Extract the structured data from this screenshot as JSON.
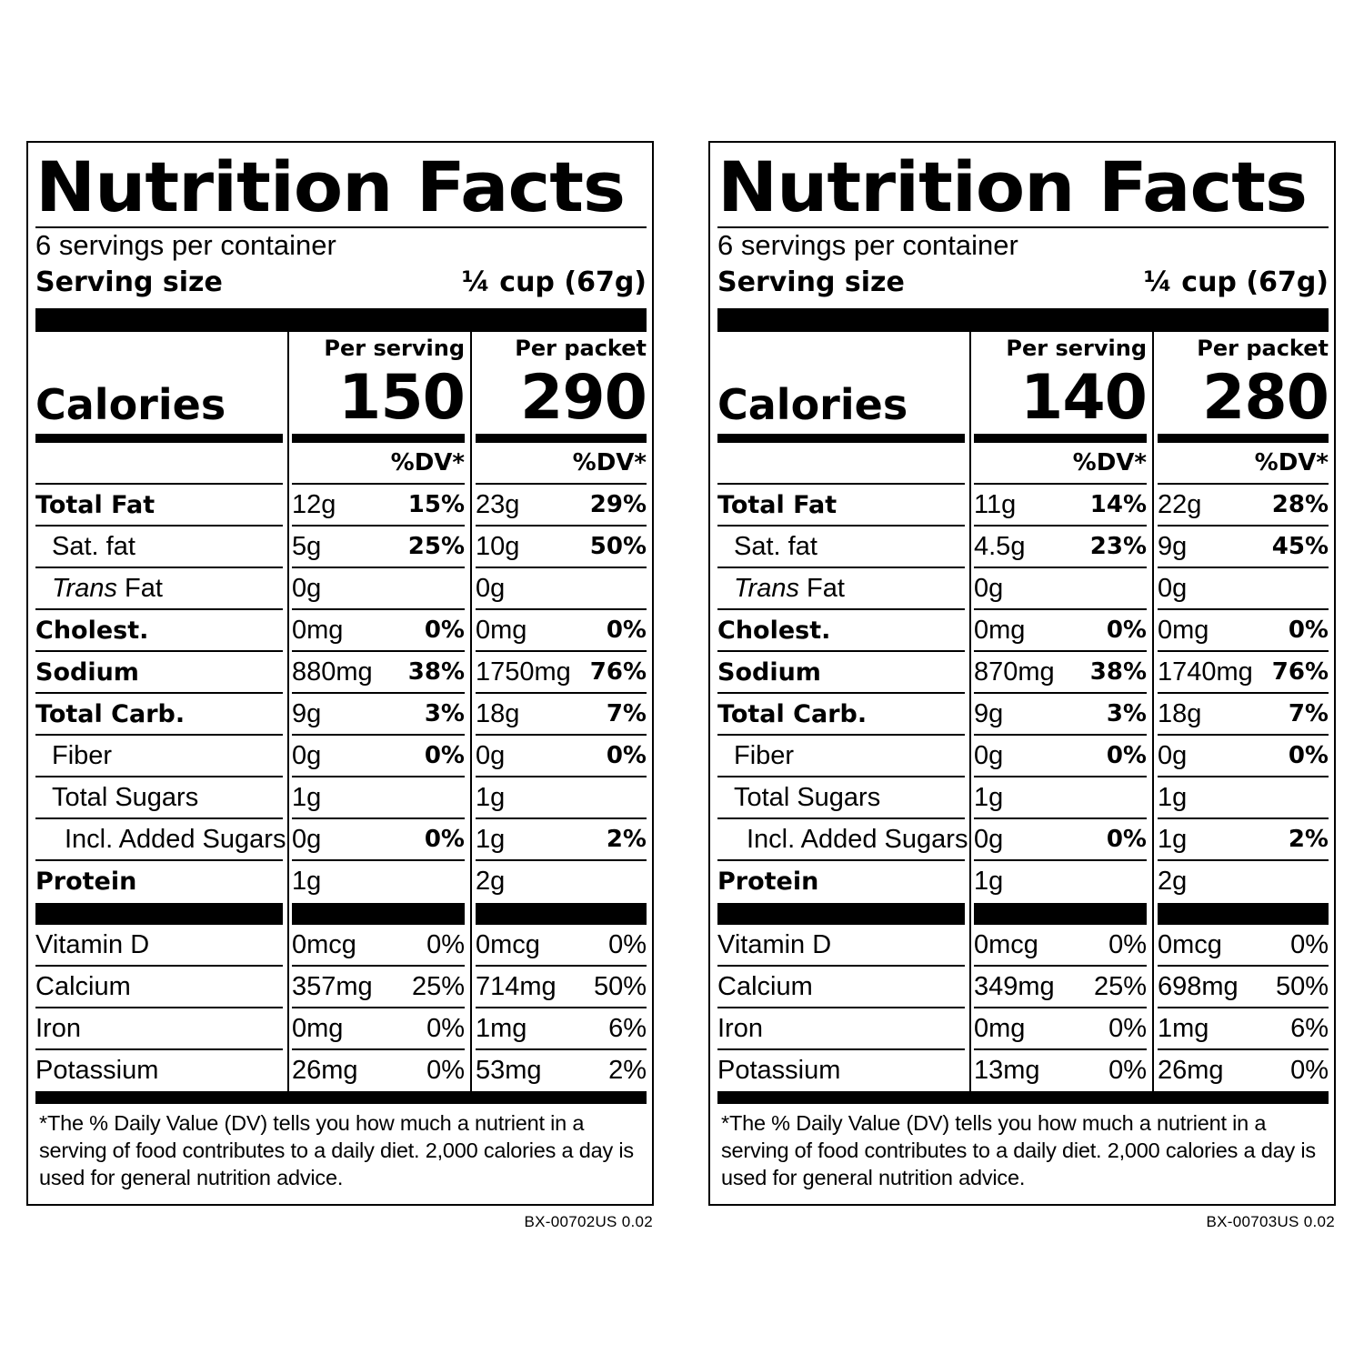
{
  "labels": [
    {
      "title": "Nutrition Facts",
      "servings_per_container": "6 servings per container",
      "serving_size_label": "Serving size",
      "serving_size_value": "¼ cup (67g)",
      "calories_label": "Calories",
      "per_serving_label": "Per serving",
      "per_packet_label": "Per packet",
      "calories_per_serving": "150",
      "calories_per_packet": "290",
      "dv_header": "%DV*",
      "nutrients": [
        {
          "name": "Total Fat",
          "serving_amt": "12g",
          "serving_dv": "15%",
          "packet_amt": "23g",
          "packet_dv": "29%"
        },
        {
          "name": "Sat. fat",
          "serving_amt": "5g",
          "serving_dv": "25%",
          "packet_amt": "10g",
          "packet_dv": "50%"
        },
        {
          "name_italic": "Trans",
          "name_rest": " Fat",
          "serving_amt": "0g",
          "serving_dv": "",
          "packet_amt": "0g",
          "packet_dv": ""
        },
        {
          "name": "Cholest.",
          "serving_amt": "0mg",
          "serving_dv": "0%",
          "packet_amt": "0mg",
          "packet_dv": "0%"
        },
        {
          "name": "Sodium",
          "serving_amt": "880mg",
          "serving_dv": "38%",
          "packet_amt": "1750mg",
          "packet_dv": "76%"
        },
        {
          "name": "Total Carb.",
          "serving_amt": "9g",
          "serving_dv": "3%",
          "packet_amt": "18g",
          "packet_dv": "7%"
        },
        {
          "name": "Fiber",
          "serving_amt": "0g",
          "serving_dv": "0%",
          "packet_amt": "0g",
          "packet_dv": "0%"
        },
        {
          "name": "Total Sugars",
          "serving_amt": "1g",
          "serving_dv": "",
          "packet_amt": "1g",
          "packet_dv": ""
        },
        {
          "name": "Incl. Added Sugars",
          "serving_amt": "0g",
          "serving_dv": "0%",
          "packet_amt": "1g",
          "packet_dv": "2%"
        },
        {
          "name": "Protein",
          "serving_amt": "1g",
          "serving_dv": "",
          "packet_amt": "2g",
          "packet_dv": ""
        }
      ],
      "vitamins": [
        {
          "name": "Vitamin D",
          "serving_amt": "0mcg",
          "serving_dv": "0%",
          "packet_amt": "0mcg",
          "packet_dv": "0%"
        },
        {
          "name": "Calcium",
          "serving_amt": "357mg",
          "serving_dv": "25%",
          "packet_amt": "714mg",
          "packet_dv": "50%"
        },
        {
          "name": "Iron",
          "serving_amt": "0mg",
          "serving_dv": "0%",
          "packet_amt": "1mg",
          "packet_dv": "6%"
        },
        {
          "name": "Potassium",
          "serving_amt": "26mg",
          "serving_dv": "0%",
          "packet_amt": "53mg",
          "packet_dv": "2%"
        }
      ],
      "footnote": "*The % Daily Value (DV) tells you how much a nutrient in a serving of food contributes to a daily diet. 2,000 calories a day is used for general nutrition advice.",
      "code": "BX-00702US 0.02"
    },
    {
      "title": "Nutrition Facts",
      "servings_per_container": "6 servings per container",
      "serving_size_label": "Serving size",
      "serving_size_value": "¼ cup (67g)",
      "calories_label": "Calories",
      "per_serving_label": "Per serving",
      "per_packet_label": "Per packet",
      "calories_per_serving": "140",
      "calories_per_packet": "280",
      "dv_header": "%DV*",
      "nutrients": [
        {
          "name": "Total Fat",
          "serving_amt": "11g",
          "serving_dv": "14%",
          "packet_amt": "22g",
          "packet_dv": "28%"
        },
        {
          "name": "Sat. fat",
          "serving_amt": "4.5g",
          "serving_dv": "23%",
          "packet_amt": "9g",
          "packet_dv": "45%"
        },
        {
          "name_italic": "Trans",
          "name_rest": " Fat",
          "serving_amt": "0g",
          "serving_dv": "",
          "packet_amt": "0g",
          "packet_dv": ""
        },
        {
          "name": "Cholest.",
          "serving_amt": "0mg",
          "serving_dv": "0%",
          "packet_amt": "0mg",
          "packet_dv": "0%"
        },
        {
          "name": "Sodium",
          "serving_amt": "870mg",
          "serving_dv": "38%",
          "packet_amt": "1740mg",
          "packet_dv": "76%"
        },
        {
          "name": "Total Carb.",
          "serving_amt": "9g",
          "serving_dv": "3%",
          "packet_amt": "18g",
          "packet_dv": "7%"
        },
        {
          "name": "Fiber",
          "serving_amt": "0g",
          "serving_dv": "0%",
          "packet_amt": "0g",
          "packet_dv": "0%"
        },
        {
          "name": "Total Sugars",
          "serving_amt": "1g",
          "serving_dv": "",
          "packet_amt": "1g",
          "packet_dv": ""
        },
        {
          "name": "Incl. Added Sugars",
          "serving_amt": "0g",
          "serving_dv": "0%",
          "packet_amt": "1g",
          "packet_dv": "2%"
        },
        {
          "name": "Protein",
          "serving_amt": "1g",
          "serving_dv": "",
          "packet_amt": "2g",
          "packet_dv": ""
        }
      ],
      "vitamins": [
        {
          "name": "Vitamin D",
          "serving_amt": "0mcg",
          "serving_dv": "0%",
          "packet_amt": "0mcg",
          "packet_dv": "0%"
        },
        {
          "name": "Calcium",
          "serving_amt": "349mg",
          "serving_dv": "25%",
          "packet_amt": "698mg",
          "packet_dv": "50%"
        },
        {
          "name": "Iron",
          "serving_amt": "0mg",
          "serving_dv": "0%",
          "packet_amt": "1mg",
          "packet_dv": "6%"
        },
        {
          "name": "Potassium",
          "serving_amt": "13mg",
          "serving_dv": "0%",
          "packet_amt": "26mg",
          "packet_dv": "0%"
        }
      ],
      "footnote": "*The % Daily Value (DV) tells you how much a nutrient in a serving of food contributes to a daily diet. 2,000 calories a day is used for general nutrition advice.",
      "code": "BX-00703US 0.02"
    }
  ]
}
